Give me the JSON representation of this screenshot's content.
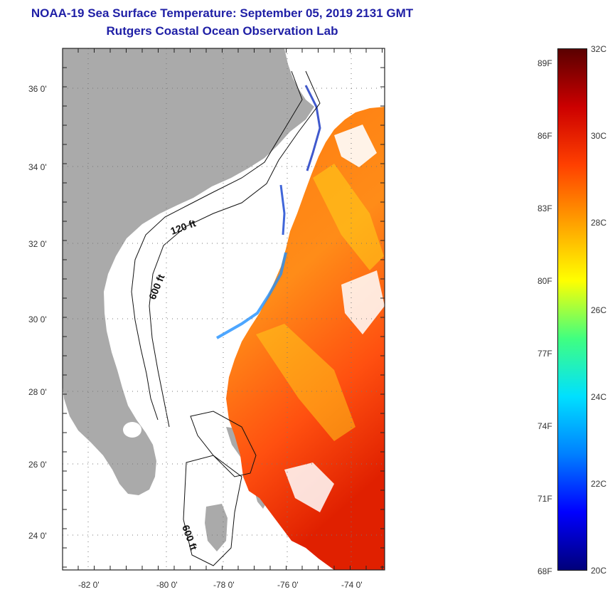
{
  "header": {
    "title": "NOAA-19 Sea Surface Temperature:  September 05, 2019 2131 GMT",
    "subtitle": "Rutgers Coastal Ocean Observation Lab"
  },
  "map": {
    "lat_labels": [
      "36 0'",
      "34 0'",
      "32 0'",
      "30 0'",
      "28 0'",
      "26 0'",
      "24 0'"
    ],
    "lon_labels": [
      "-82 0'",
      "-80 0'",
      "-78 0'",
      "-76 0'",
      "-74 0'"
    ],
    "contours": [
      "120 ft",
      "600 ft",
      "600 ft"
    ],
    "colors": {
      "land": "#aaaaaa",
      "water_nodata": "#ffffff",
      "grid": "#999999"
    }
  },
  "colorbar": {
    "fahrenheit": [
      "89F",
      "86F",
      "83F",
      "80F",
      "77F",
      "74F",
      "71F",
      "68F"
    ],
    "celsius": [
      "32C",
      "30C",
      "28C",
      "26C",
      "24C",
      "22C",
      "20C"
    ],
    "range_c": [
      20,
      32
    ],
    "palette": [
      "#00007a",
      "#0000ff",
      "#0080ff",
      "#00e0ff",
      "#40ff80",
      "#ffff00",
      "#ffa000",
      "#ff4000",
      "#cc0000",
      "#5a0000"
    ]
  }
}
